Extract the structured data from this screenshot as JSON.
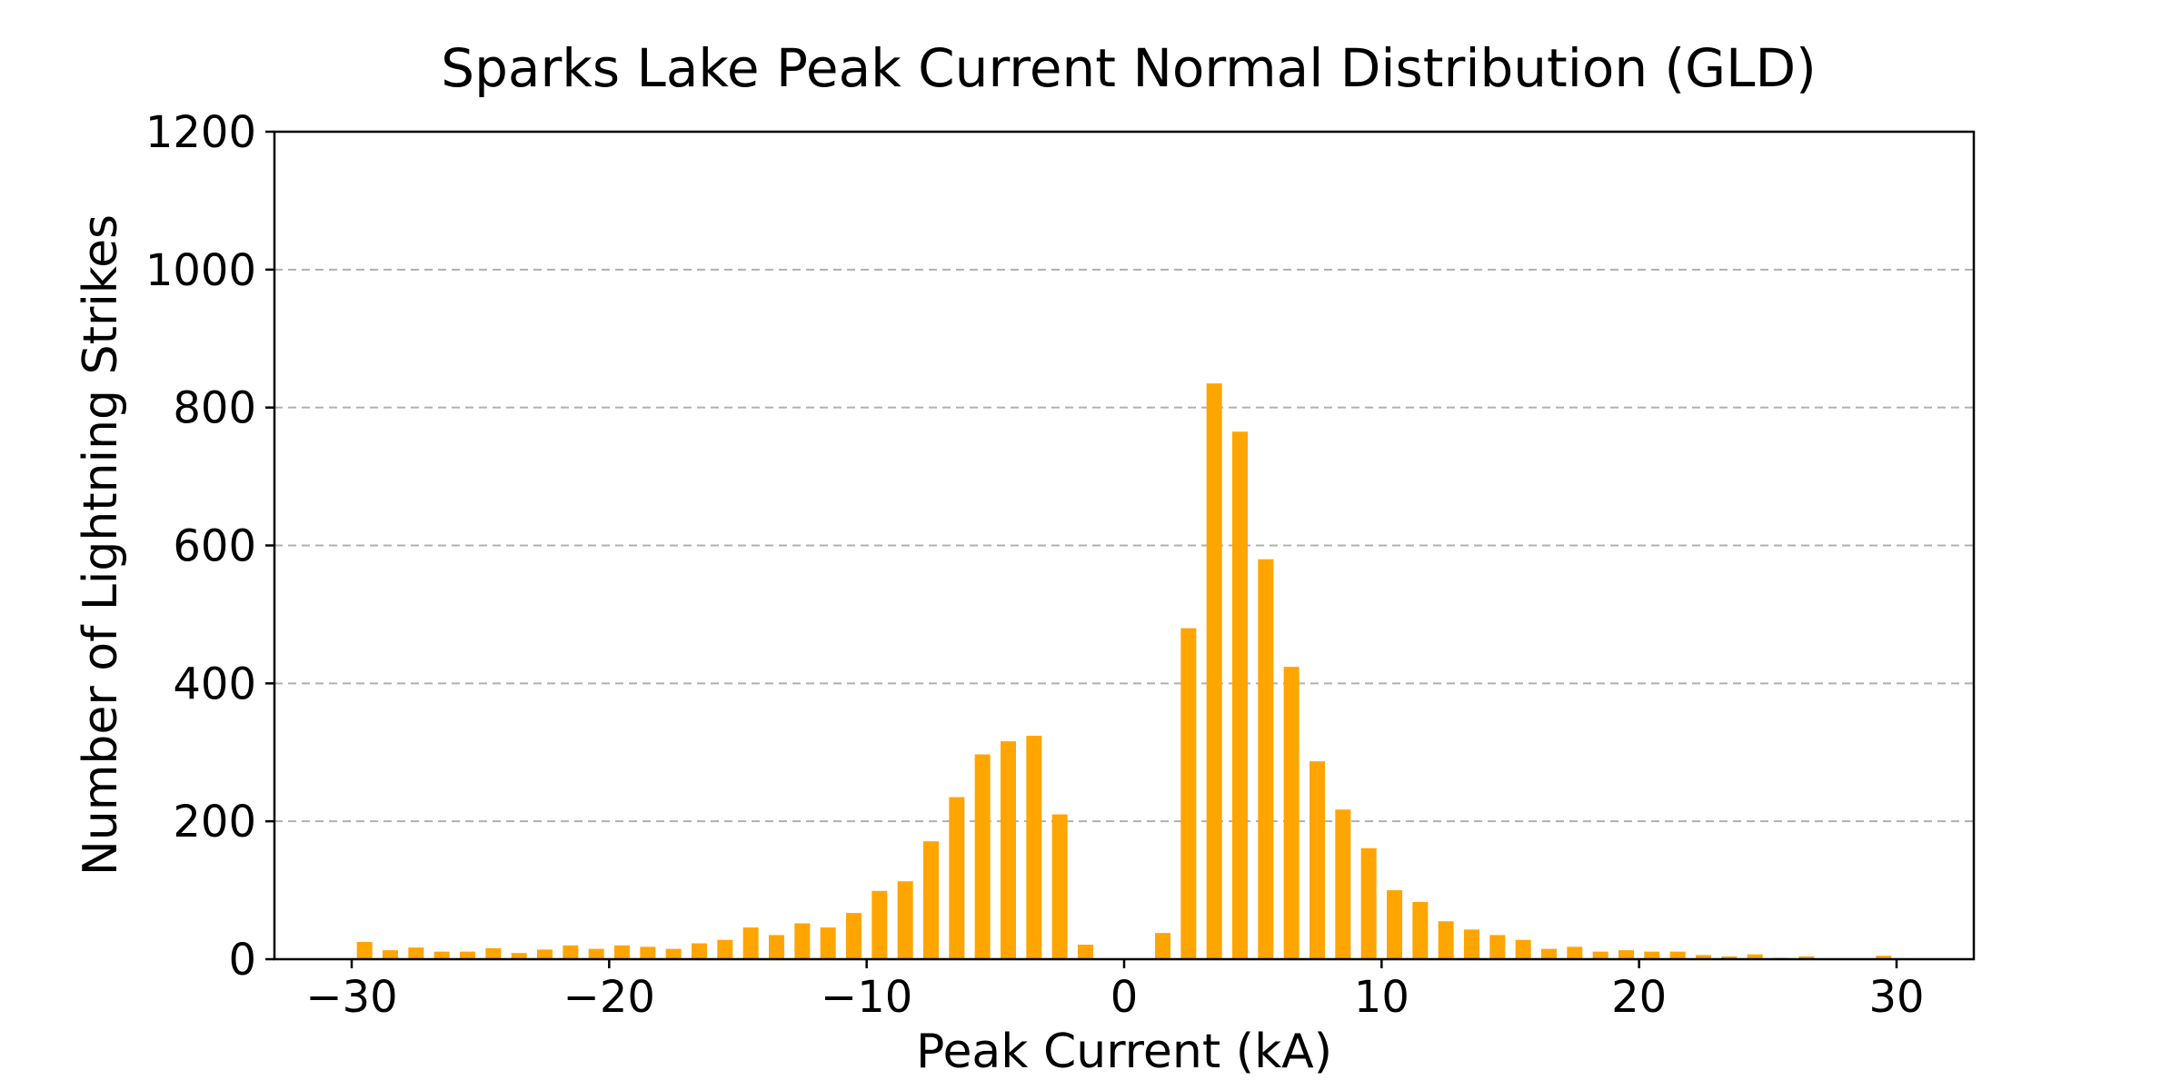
{
  "chart_data": {
    "type": "bar",
    "title": "Sparks Lake Peak Current Normal Distribution (GLD)",
    "xlabel": "Peak Current (kA)",
    "ylabel": "Number of Lightning Strikes",
    "xlim": [
      -33,
      33
    ],
    "ylim": [
      0,
      1200
    ],
    "xticks": [
      -30,
      -20,
      -10,
      0,
      10,
      20,
      30
    ],
    "xtick_labels": [
      "−30",
      "−20",
      "−10",
      "0",
      "10",
      "20",
      "30"
    ],
    "yticks": [
      0,
      200,
      400,
      600,
      800,
      1000,
      1200
    ],
    "ytick_labels": [
      "0",
      "200",
      "400",
      "600",
      "800",
      "1000",
      "1200"
    ],
    "grid": "y-dashed",
    "bar_color": "#FFA500",
    "bar_width": 0.6,
    "x": [
      -29.5,
      -28.5,
      -27.5,
      -26.5,
      -25.5,
      -24.5,
      -23.5,
      -22.5,
      -21.5,
      -20.5,
      -19.5,
      -18.5,
      -17.5,
      -16.5,
      -15.5,
      -14.5,
      -13.5,
      -12.5,
      -11.5,
      -10.5,
      -9.5,
      -8.5,
      -7.5,
      -6.5,
      -5.5,
      -4.5,
      -3.5,
      -2.5,
      -1.5,
      1.5,
      2.5,
      3.5,
      4.5,
      5.5,
      6.5,
      7.5,
      8.5,
      9.5,
      10.5,
      11.5,
      12.5,
      13.5,
      14.5,
      15.5,
      16.5,
      17.5,
      18.5,
      19.5,
      20.5,
      21.5,
      22.5,
      23.5,
      24.5,
      25.5,
      26.5,
      29.5
    ],
    "values": [
      25,
      13,
      17,
      11,
      11,
      16,
      9,
      14,
      20,
      15,
      20,
      18,
      15,
      23,
      28,
      46,
      35,
      52,
      46,
      67,
      99,
      113,
      171,
      235,
      297,
      316,
      324,
      210,
      21,
      38,
      480,
      835,
      765,
      580,
      424,
      287,
      217,
      161,
      100,
      83,
      55,
      43,
      35,
      28,
      15,
      18,
      11,
      13,
      11,
      11,
      6,
      4,
      7,
      2,
      4,
      5
    ]
  }
}
